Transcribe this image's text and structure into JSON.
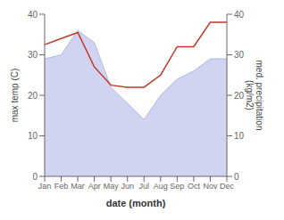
{
  "chart_data": {
    "type": "line",
    "categories": [
      "Jan",
      "Feb",
      "Mar",
      "Apr",
      "May",
      "Jun",
      "Jul",
      "Aug",
      "Sep",
      "Oct",
      "Nov",
      "Dec"
    ],
    "series": [
      {
        "type": "area",
        "color": "#b0b8e8",
        "values": [
          29,
          30,
          36,
          33,
          22,
          18,
          14,
          20,
          24,
          26,
          29,
          29
        ]
      },
      {
        "type": "line",
        "color": "#c0392b",
        "axis": "y2",
        "values": [
          32.5,
          34,
          35.5,
          27,
          22.5,
          22,
          22,
          25,
          32,
          32,
          38,
          38
        ]
      }
    ],
    "xlabel": "date (month)",
    "ylabel": "max temp (C)",
    "y2label": "med. precipitation\n(kg/m2)",
    "ylim": [
      0,
      40
    ],
    "yticks": [
      0,
      10,
      20,
      30,
      40
    ],
    "y2lim": [
      0,
      40
    ],
    "y2ticks": [
      0,
      10,
      20,
      30,
      40
    ],
    "grid": false
  }
}
